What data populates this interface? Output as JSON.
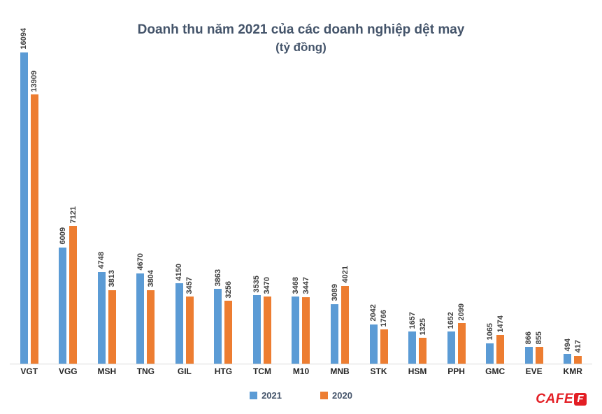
{
  "chart_data": {
    "type": "bar",
    "title": "Doanh thu năm 2021 của các doanh nghiệp dệt may",
    "subtitle": "(tỷ đồng)",
    "categories": [
      "VGT",
      "VGG",
      "MSH",
      "TNG",
      "GIL",
      "HTG",
      "TCM",
      "M10",
      "MNB",
      "STK",
      "HSM",
      "PPH",
      "GMC",
      "EVE",
      "KMR"
    ],
    "series": [
      {
        "name": "2021",
        "color": "#5B9BD5",
        "values": [
          16094,
          6009,
          4748,
          4670,
          4150,
          3863,
          3535,
          3468,
          3089,
          2042,
          1657,
          1652,
          1065,
          866,
          494
        ]
      },
      {
        "name": "2020",
        "color": "#ED7D31",
        "values": [
          13909,
          7121,
          3813,
          3804,
          3457,
          3256,
          3470,
          3447,
          4021,
          1766,
          1325,
          2099,
          1474,
          855,
          417
        ]
      }
    ],
    "ylim": [
      0,
      16094
    ],
    "grid": false,
    "legend_position": "bottom",
    "value_labels": "rotated-90-above-bars"
  },
  "colors": {
    "title": "#44546A",
    "axis_line": "#d9d9d9",
    "value_label": "#404040",
    "category_label": "#262626"
  },
  "logo": {
    "text": "CAFE",
    "badge": "F"
  }
}
